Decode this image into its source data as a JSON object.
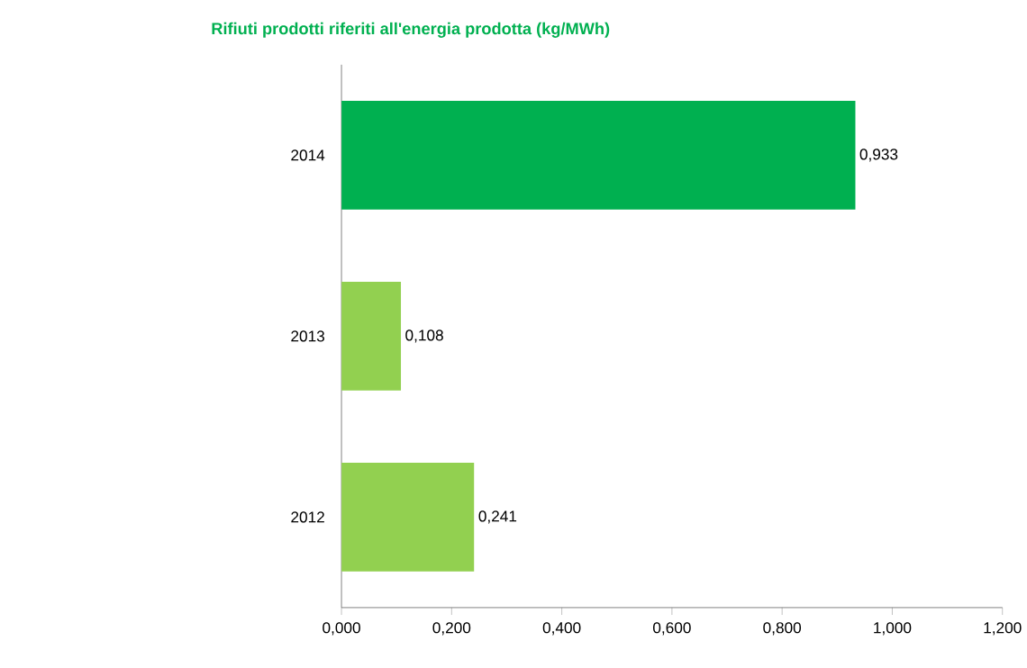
{
  "chart_data": {
    "type": "bar",
    "orientation": "horizontal",
    "title": "Rifiuti prodotti riferiti all'energia prodotta (kg/MWh)",
    "categories": [
      "2014",
      "2013",
      "2012"
    ],
    "values": [
      0.933,
      0.108,
      0.241
    ],
    "colors": [
      "#00b050",
      "#92d050",
      "#92d050"
    ],
    "value_labels": [
      "0,933",
      "0,108",
      "0,241"
    ],
    "xlim": [
      0,
      1.2
    ],
    "xticks": [
      {
        "value": 0,
        "label": "0,000"
      },
      {
        "value": 0.2,
        "label": "0,200"
      },
      {
        "value": 0.4,
        "label": "0,400"
      },
      {
        "value": 0.6,
        "label": "0,600"
      },
      {
        "value": 0.8,
        "label": "0,800"
      },
      {
        "value": 1.0,
        "label": "1,000"
      },
      {
        "value": 1.2,
        "label": "1,200"
      }
    ]
  }
}
